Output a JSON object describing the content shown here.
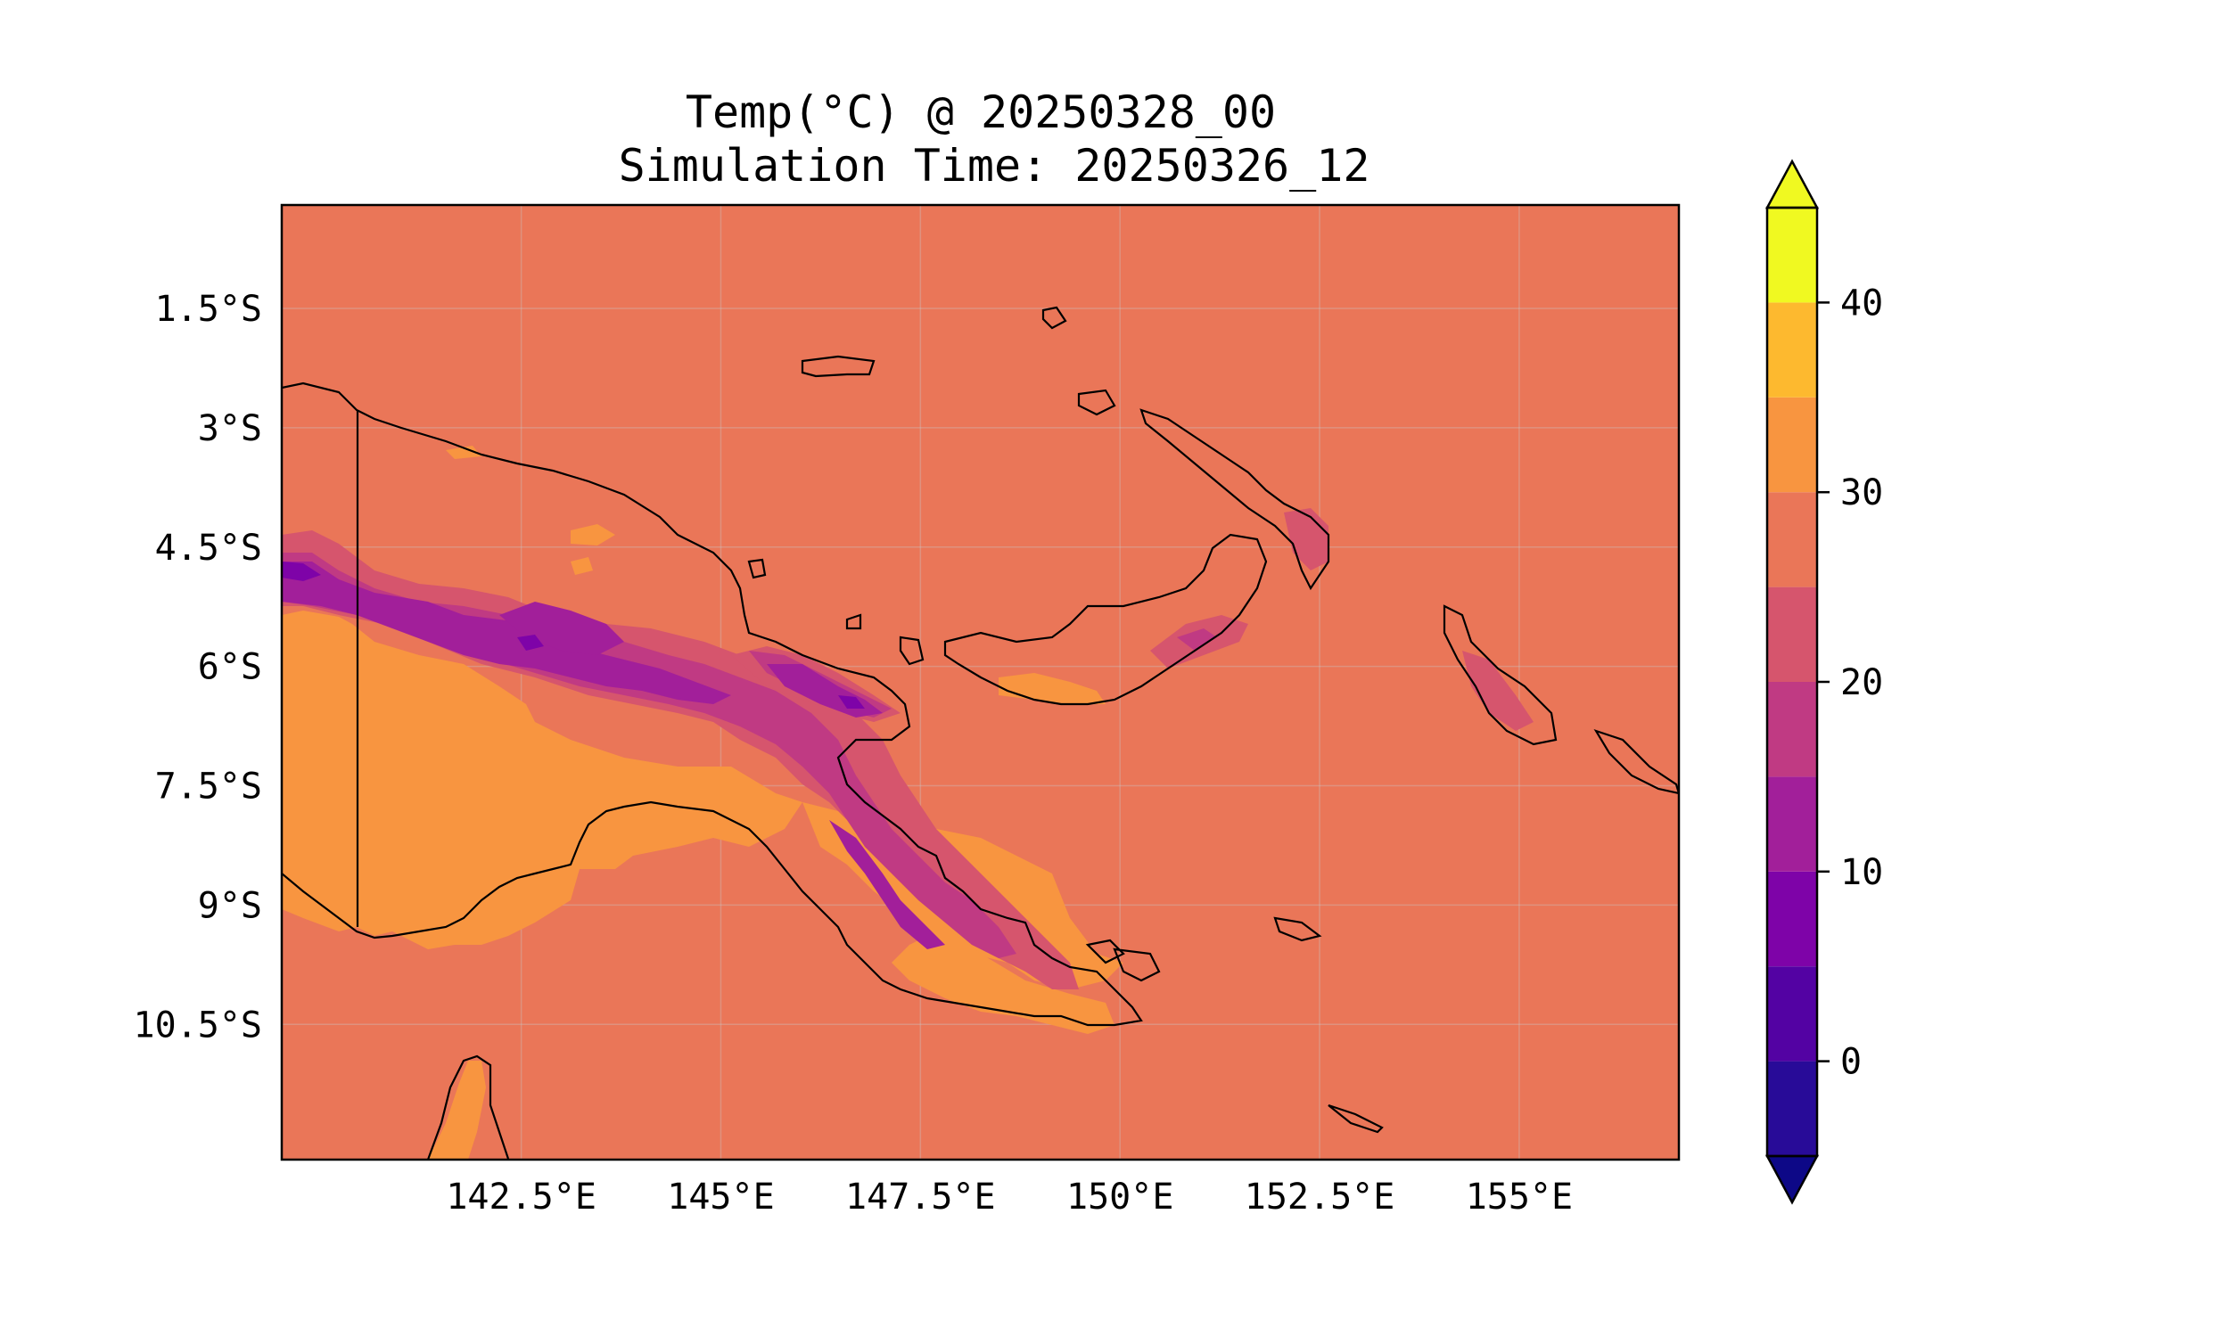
{
  "title": {
    "line1": "Temp(°C) @ 20250328_00",
    "line2": "Simulation Time: 20250326_12"
  },
  "map": {
    "projection": "PlateCarree",
    "extent": {
      "lon": [
        139.5,
        157.0
      ],
      "lat": [
        -0.2,
        -12.2
      ]
    },
    "background_value_c": 27.5,
    "background_color": "#ea7658",
    "gridlines": true,
    "coastlines": true,
    "border": "vertical line near 141°E"
  },
  "axes": {
    "x_ticks": [
      "142.5°E",
      "145°E",
      "147.5°E",
      "150°E",
      "152.5°E",
      "155°E"
    ],
    "x_values": [
      142.5,
      145,
      147.5,
      150,
      152.5,
      155
    ],
    "y_ticks": [
      "1.5°S",
      "3°S",
      "4.5°S",
      "6°S",
      "7.5°S",
      "9°S",
      "10.5°S"
    ],
    "y_values": [
      -1.5,
      -3,
      -4.5,
      -6,
      -7.5,
      -9,
      -10.5
    ]
  },
  "colorbar": {
    "orientation": "vertical",
    "extend": "both",
    "vmin": -5,
    "vmax": 45,
    "levels": [
      -5,
      0,
      5,
      10,
      15,
      20,
      25,
      30,
      35,
      40,
      45
    ],
    "colors": [
      "#280b98",
      "#5302a3",
      "#7e03a8",
      "#a21f9a",
      "#c03a83",
      "#d6556d",
      "#ea7658",
      "#f89540",
      "#fdb92f",
      "#f0f921"
    ],
    "under_color": "#0d0887",
    "over_color": "#f0f921",
    "tick_values": [
      0,
      10,
      20,
      30,
      40
    ],
    "tick_labels": [
      "0",
      "10",
      "20",
      "30",
      "40"
    ]
  }
}
